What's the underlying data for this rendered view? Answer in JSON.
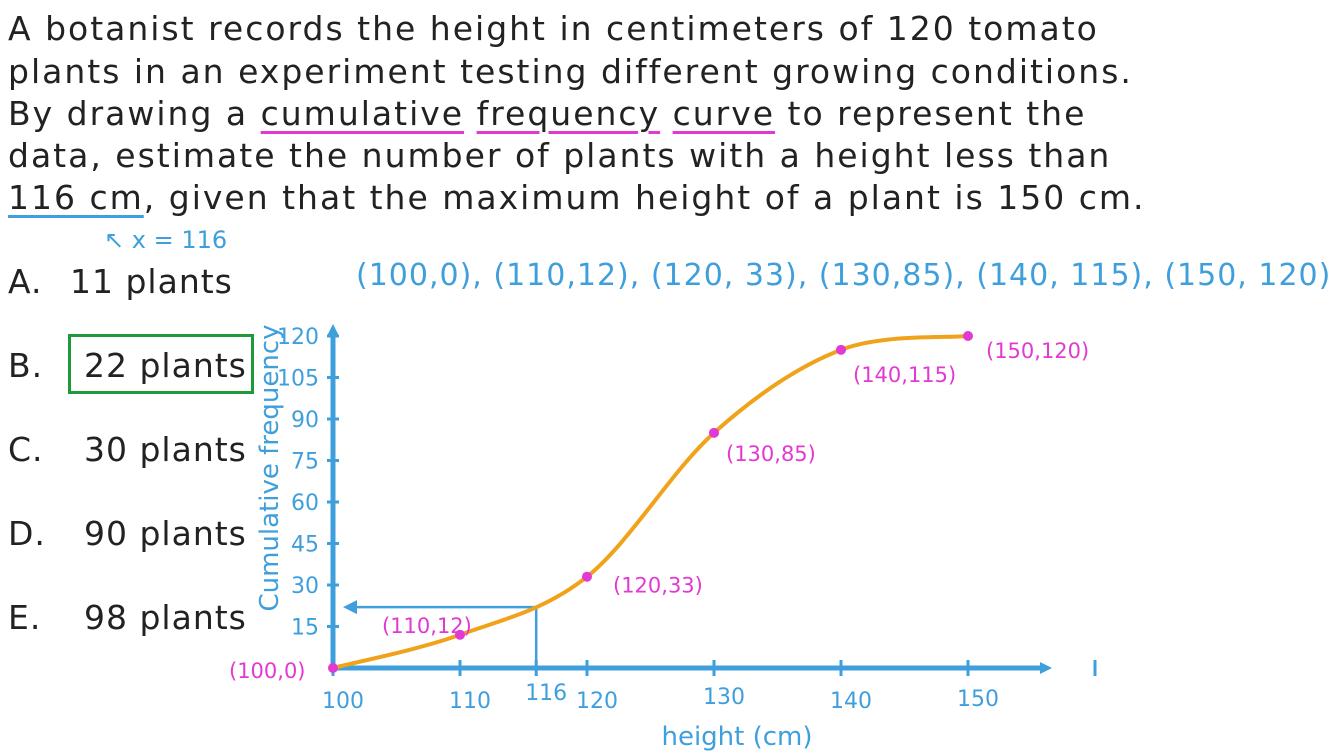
{
  "question": {
    "line1": "A botanist records the height in centimeters of 120 tomato",
    "line2": "plants in an experiment testing different growing conditions.",
    "line3_pre": "By drawing a ",
    "line3_u1": "cumulative",
    "line3_u2": "frequency",
    "line3_u3": "curve",
    "line3_post": " to represent the",
    "line4": "data, estimate the number of plants with a height less than",
    "line5_u": "116 cm",
    "line5_post": ", given that the maximum height of a plant is 150 cm."
  },
  "note": {
    "x_equals": "x = 116"
  },
  "points_text": "(100,0), (110,12), (120, 33), (130,85), (140, 115), (150, 120)",
  "options": [
    {
      "letter": "A.",
      "text": "11 plants"
    },
    {
      "letter": "B.",
      "text": "22 plants"
    },
    {
      "letter": "C.",
      "text": "30 plants"
    },
    {
      "letter": "D.",
      "text": "90 plants"
    },
    {
      "letter": "E.",
      "text": "98 plants"
    }
  ],
  "colors": {
    "axis": "#3f9fdc",
    "curve": "#f0a31a",
    "points": "#e339d3",
    "answer_box": "#1f9a3a"
  },
  "chart_data": {
    "type": "line",
    "xlabel": "height (cm)",
    "ylabel": "Cumulative frequency",
    "x_ticks": [
      100,
      110,
      116,
      120,
      130,
      140,
      150
    ],
    "y_ticks": [
      15,
      30,
      45,
      60,
      75,
      90,
      105,
      120
    ],
    "xlim": [
      100,
      160
    ],
    "ylim": [
      0,
      125
    ],
    "series": [
      {
        "x": [
          100,
          110,
          120,
          130,
          140,
          150
        ],
        "y": [
          0,
          12,
          33,
          85,
          115,
          120
        ],
        "labels": [
          "(100,0)",
          "(110,12)",
          "(120,33)",
          "(130,85)",
          "(140,115)",
          "(150,120)"
        ]
      }
    ],
    "annotation": {
      "x": 116,
      "y": 22
    }
  }
}
